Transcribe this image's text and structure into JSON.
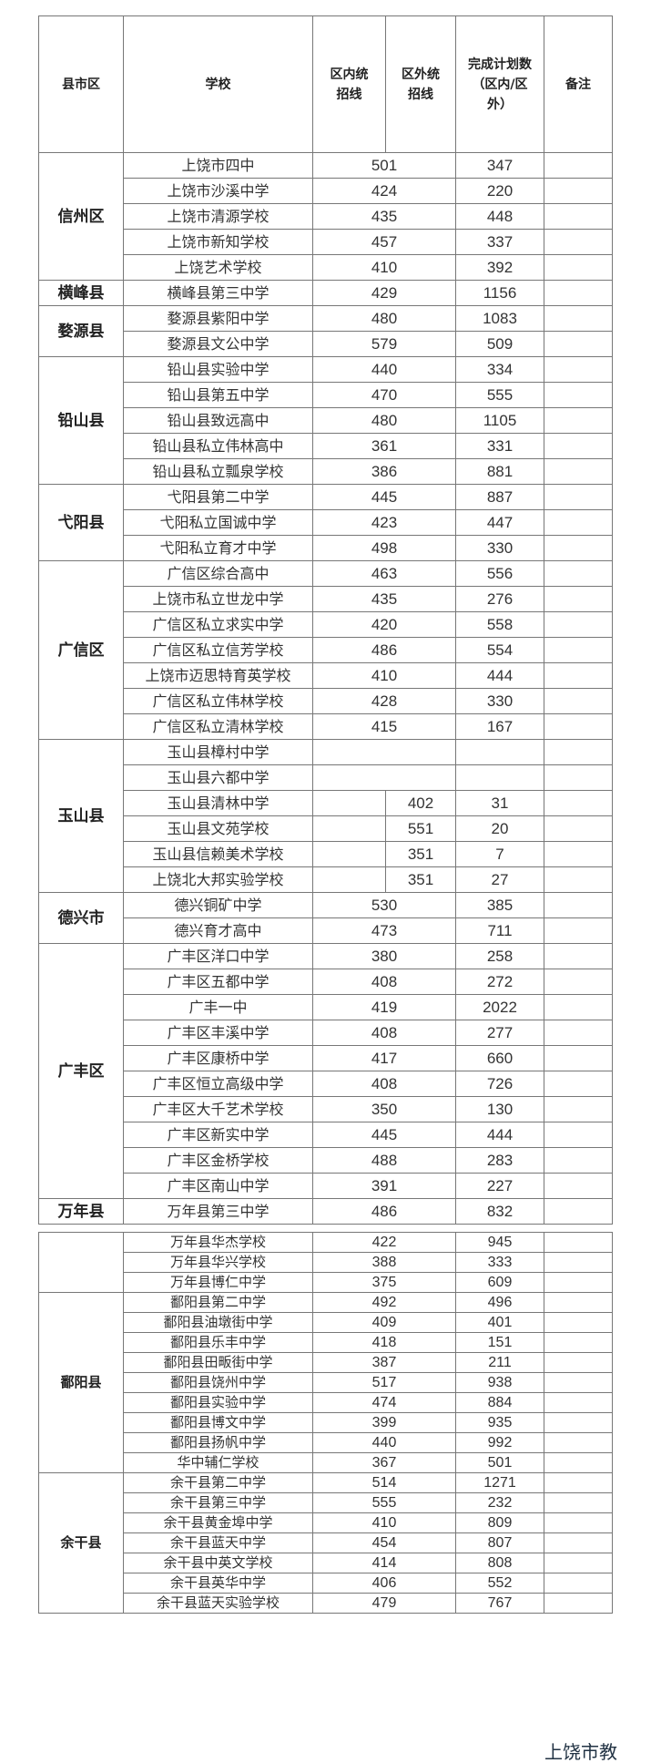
{
  "headers": {
    "district": "县市区",
    "school": "学校",
    "in_line": "区内统招线",
    "out_line": "区外统招线",
    "plan": "完成计划数（区内/区外）",
    "notes": "备注"
  },
  "table1": [
    {
      "district": "信州区",
      "schools": [
        [
          "上饶市四中",
          "501",
          "",
          "347"
        ],
        [
          "上饶市沙溪中学",
          "424",
          "",
          "220"
        ],
        [
          "上饶市清源学校",
          "435",
          "",
          "448"
        ],
        [
          "上饶市新知学校",
          "457",
          "",
          "337"
        ],
        [
          "上饶艺术学校",
          "410",
          "",
          "392"
        ]
      ]
    },
    {
      "district": "横峰县",
      "schools": [
        [
          "横峰县第三中学",
          "429",
          "",
          "1156"
        ]
      ]
    },
    {
      "district": "婺源县",
      "schools": [
        [
          "婺源县紫阳中学",
          "480",
          "",
          "1083"
        ],
        [
          "婺源县文公中学",
          "579",
          "",
          "509"
        ]
      ]
    },
    {
      "district": "铅山县",
      "schools": [
        [
          "铅山县实验中学",
          "440",
          "",
          "334"
        ],
        [
          "铅山县第五中学",
          "470",
          "",
          "555"
        ],
        [
          "铅山县致远高中",
          "480",
          "",
          "1105"
        ],
        [
          "铅山县私立伟林高中",
          "361",
          "",
          "331"
        ],
        [
          "铅山县私立瓢泉学校",
          "386",
          "",
          "881"
        ]
      ]
    },
    {
      "district": "弋阳县",
      "schools": [
        [
          "弋阳县第二中学",
          "445",
          "",
          "887"
        ],
        [
          "弋阳私立国诚中学",
          "423",
          "",
          "447"
        ],
        [
          "弋阳私立育才中学",
          "498",
          "",
          "330"
        ]
      ]
    },
    {
      "district": "广信区",
      "schools": [
        [
          "广信区综合高中",
          "463",
          "",
          "556"
        ],
        [
          "上饶市私立世龙中学",
          "435",
          "",
          "276"
        ],
        [
          "广信区私立求实中学",
          "420",
          "",
          "558"
        ],
        [
          "广信区私立信芳学校",
          "486",
          "",
          "554"
        ],
        [
          "上饶市迈思特育英学校",
          "410",
          "",
          "444"
        ],
        [
          "广信区私立伟林学校",
          "428",
          "",
          "330"
        ],
        [
          "广信区私立清林学校",
          "415",
          "",
          "167"
        ]
      ]
    },
    {
      "district": "玉山县",
      "schools": [
        [
          "玉山县樟村中学",
          "",
          "",
          ""
        ],
        [
          "玉山县六都中学",
          "",
          "",
          ""
        ],
        [
          "玉山县清林中学",
          "",
          "402",
          "31"
        ],
        [
          "玉山县文苑学校",
          "",
          "551",
          "20"
        ],
        [
          "玉山县信赖美术学校",
          "",
          "351",
          "7"
        ],
        [
          "上饶北大邦实验学校",
          "",
          "351",
          "27"
        ]
      ]
    },
    {
      "district": "德兴市",
      "schools": [
        [
          "德兴铜矿中学",
          "530",
          "",
          "385"
        ],
        [
          "德兴育才高中",
          "473",
          "",
          "711"
        ]
      ]
    },
    {
      "district": "广丰区",
      "schools": [
        [
          "广丰区洋口中学",
          "380",
          "",
          "258"
        ],
        [
          "广丰区五都中学",
          "408",
          "",
          "272"
        ],
        [
          "广丰一中",
          "419",
          "",
          "2022"
        ],
        [
          "广丰区丰溪中学",
          "408",
          "",
          "277"
        ],
        [
          "广丰区康桥中学",
          "417",
          "",
          "660"
        ],
        [
          "广丰区恒立高级中学",
          "408",
          "",
          "726"
        ],
        [
          "广丰区大千艺术学校",
          "350",
          "",
          "130"
        ],
        [
          "广丰区新实中学",
          "445",
          "",
          "444"
        ],
        [
          "广丰区金桥学校",
          "488",
          "",
          "283"
        ],
        [
          "广丰区南山中学",
          "391",
          "",
          "227"
        ]
      ]
    },
    {
      "district": "万年县",
      "schools": [
        [
          "万年县第三中学",
          "486",
          "",
          "832"
        ]
      ]
    }
  ],
  "table2": [
    {
      "district": "",
      "schools": [
        [
          "万年县华杰学校",
          "422",
          "",
          "945"
        ],
        [
          "万年县华兴学校",
          "388",
          "",
          "333"
        ],
        [
          "万年县博仁中学",
          "375",
          "",
          "609"
        ]
      ]
    },
    {
      "district": "鄱阳县",
      "schools": [
        [
          "鄱阳县第二中学",
          "492",
          "",
          "496"
        ],
        [
          "鄱阳县油墩街中学",
          "409",
          "",
          "401"
        ],
        [
          "鄱阳县乐丰中学",
          "418",
          "",
          "151"
        ],
        [
          "鄱阳县田畈街中学",
          "387",
          "",
          "211"
        ],
        [
          "鄱阳县饶州中学",
          "517",
          "",
          "938"
        ],
        [
          "鄱阳县实验中学",
          "474",
          "",
          "884"
        ],
        [
          "鄱阳县博文中学",
          "399",
          "",
          "935"
        ],
        [
          "鄱阳县扬帆中学",
          "440",
          "",
          "992"
        ],
        [
          "华中辅仁学校",
          "367",
          "",
          "501"
        ]
      ]
    },
    {
      "district": "余干县",
      "schools": [
        [
          "余干县第二中学",
          "514",
          "",
          "1271"
        ],
        [
          "余干县第三中学",
          "555",
          "",
          "232"
        ],
        [
          "余干县黄金埠中学",
          "410",
          "",
          "809"
        ],
        [
          "余干县蓝天中学",
          "454",
          "",
          "807"
        ],
        [
          "余干县中英文学校",
          "414",
          "",
          "808"
        ],
        [
          "余干县英华中学",
          "406",
          "",
          "552"
        ],
        [
          "余干县蓝天实验学校",
          "479",
          "",
          "767"
        ]
      ]
    }
  ],
  "footer": "上饶市教"
}
